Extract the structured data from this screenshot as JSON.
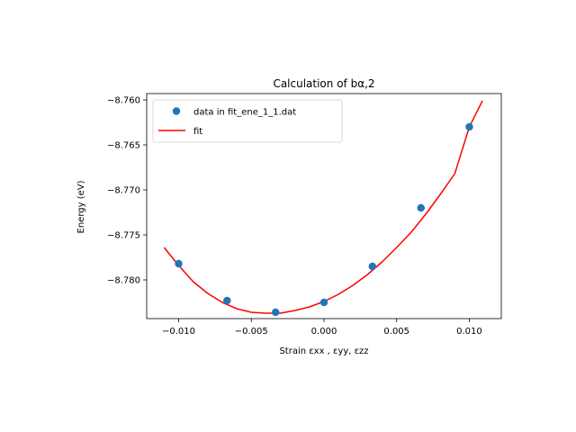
{
  "chart_data": {
    "type": "scatter",
    "title": "Calculation of bα,2",
    "xlabel": "Strain εxx , εyy, εzz",
    "ylabel": "Energy (eV)",
    "xlim": [
      -0.0122,
      0.0122
    ],
    "ylim": [
      -8.7843,
      -8.7593
    ],
    "xticks": [
      -0.01,
      -0.005,
      0.0,
      0.005,
      0.01
    ],
    "xtick_labels": [
      "−0.010",
      "−0.005",
      "0.000",
      "0.005",
      "0.010"
    ],
    "yticks": [
      -8.78,
      -8.775,
      -8.77,
      -8.765,
      -8.76
    ],
    "ytick_labels": [
      "−8.780",
      "−8.775",
      "−8.770",
      "−8.765",
      "−8.760"
    ],
    "grid": false,
    "legend_position": "top-left",
    "series": [
      {
        "name": "data in fit_ene_1_1.dat",
        "kind": "markers",
        "color": "#1f77b4",
        "x": [
          -0.01,
          -0.00667,
          -0.00333,
          0.0,
          0.00333,
          0.00667,
          0.01
        ],
        "y": [
          -8.7782,
          -8.7823,
          -8.7836,
          -8.7825,
          -8.7785,
          -8.772,
          -8.763
        ]
      },
      {
        "name": "fit",
        "kind": "line",
        "color": "#ff0000",
        "x": [
          -0.011,
          -0.01,
          -0.009,
          -0.008,
          -0.007,
          -0.006,
          -0.005,
          -0.004,
          -0.0035,
          -0.003,
          -0.002,
          -0.001,
          0.0,
          0.001,
          0.002,
          0.003,
          0.004,
          0.005,
          0.006,
          0.007,
          0.008,
          0.009,
          0.01,
          0.0109
        ],
        "y": [
          -8.7764,
          -8.7784,
          -8.7802,
          -8.7815,
          -8.7825,
          -8.7832,
          -8.7836,
          -8.7837,
          -8.7837,
          -8.7837,
          -8.7834,
          -8.783,
          -8.7824,
          -8.7816,
          -8.7806,
          -8.7794,
          -8.778,
          -8.7764,
          -8.7747,
          -8.7727,
          -8.7705,
          -8.7682,
          -8.763,
          -8.7601
        ]
      }
    ]
  }
}
